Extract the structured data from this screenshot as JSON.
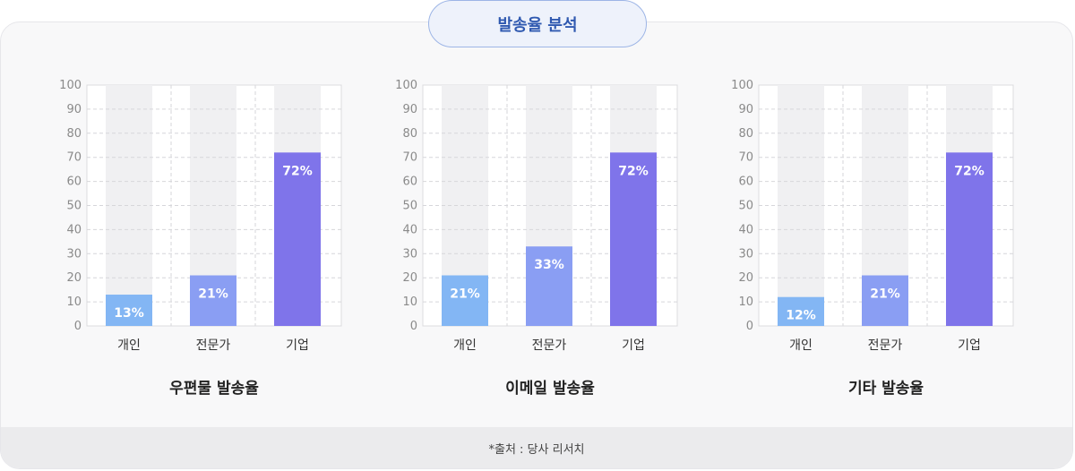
{
  "header": {
    "title": "발송율 분석"
  },
  "footer": {
    "source": "*출처 : 당사 리서치"
  },
  "colors": {
    "series": [
      "#83b6f4",
      "#8a9ef3",
      "#7f74ea"
    ],
    "track": "#f0f0f2"
  },
  "chart_data": [
    {
      "type": "bar",
      "title": "우편물 발송율",
      "categories": [
        "개인",
        "전문가",
        "기업"
      ],
      "values": [
        13,
        21,
        72
      ],
      "value_labels": [
        "13%",
        "21%",
        "72%"
      ],
      "ylim": [
        0,
        100
      ],
      "yticks": [
        "0",
        "10",
        "20",
        "30",
        "40",
        "50",
        "60",
        "70",
        "80",
        "90",
        "100"
      ],
      "grid": true
    },
    {
      "type": "bar",
      "title": "이메일 발송율",
      "categories": [
        "개인",
        "전문가",
        "기업"
      ],
      "values": [
        21,
        33,
        72
      ],
      "value_labels": [
        "21%",
        "33%",
        "72%"
      ],
      "ylim": [
        0,
        100
      ],
      "yticks": [
        "0",
        "10",
        "20",
        "30",
        "40",
        "50",
        "60",
        "70",
        "80",
        "90",
        "100"
      ],
      "grid": true
    },
    {
      "type": "bar",
      "title": "기타 발송율",
      "categories": [
        "개인",
        "전문가",
        "기업"
      ],
      "values": [
        12,
        21,
        72
      ],
      "value_labels": [
        "12%",
        "21%",
        "72%"
      ],
      "ylim": [
        0,
        100
      ],
      "yticks": [
        "0",
        "10",
        "20",
        "30",
        "40",
        "50",
        "60",
        "70",
        "80",
        "90",
        "100"
      ],
      "grid": true
    }
  ]
}
